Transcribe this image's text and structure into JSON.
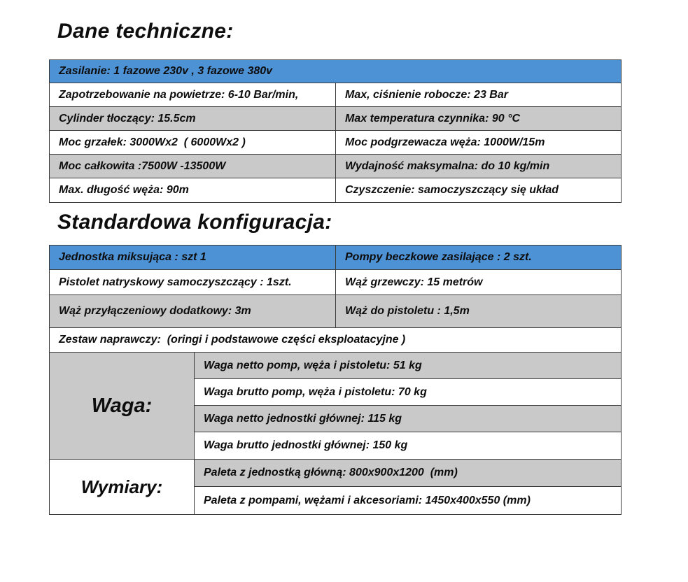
{
  "colors": {
    "header_blue": "#4e92d6",
    "row_gray": "#c9c9c9",
    "row_white": "#ffffff",
    "border": "#3b3b3b",
    "text": "#0d0d0d",
    "page_background": "#ffffff"
  },
  "section1": {
    "title": "Dane techniczne:",
    "table": {
      "header": "Zasilanie: 1 fazowe 230v , 3 fazowe 380v",
      "rows": [
        {
          "left": "Zapotrzebowanie na powietrze: 6-10 Bar/min,",
          "right": "Max, ciśnienie robocze: 23 Bar",
          "shade": "white"
        },
        {
          "left": "Cylinder tłoczący: 15.5cm",
          "right": "Max temperatura czynnika: 90 °C",
          "shade": "gray"
        },
        {
          "left": "Moc grzałek: 3000Wx2  ( 6000Wx2 )",
          "right": "Moc podgrzewacza węża: 1000W/15m",
          "shade": "white"
        },
        {
          "left": "Moc całkowita :7500W -13500W",
          "right": "Wydajność maksymalna: do 10 kg/min",
          "shade": "gray"
        },
        {
          "left": "Max. długość węża: 90m",
          "right": "Czyszczenie: samoczyszczący się układ",
          "shade": "white"
        }
      ]
    }
  },
  "section2": {
    "title": "Standardowa konfiguracja:",
    "table": {
      "header_left": "Jednostka miksująca : szt 1",
      "header_right": "Pompy beczkowe zasilające : 2 szt.",
      "rows": [
        {
          "left": "Pistolet natryskowy samoczyszczący : 1szt.",
          "right": "Wąż grzewczy: 15 metrów",
          "shade": "white"
        },
        {
          "left": "Wąż przyłączeniowy dodatkowy: 3m",
          "right": "Wąż do pistoletu : 1,5m",
          "shade": "gray"
        }
      ],
      "full_row": "Zestaw naprawczy:  (oringi i podstawowe części eksploatacyjne )",
      "waga": {
        "label": "Waga:",
        "rows": [
          {
            "text": "Waga netto pomp, węża i pistoletu: 51 kg",
            "shade": "gray"
          },
          {
            "text": "Waga brutto pomp, węża i pistoletu: 70 kg",
            "shade": "white"
          },
          {
            "text": "Waga netto jednostki głównej: 115 kg",
            "shade": "gray"
          },
          {
            "text": "Waga brutto jednostki głównej: 150 kg",
            "shade": "white"
          }
        ]
      },
      "wymiary": {
        "label": "Wymiary:",
        "rows": [
          {
            "text": "Paleta z jednostką główną: 800x900x1200  (mm)",
            "shade": "gray"
          },
          {
            "text": "Paleta z pompami, wężami i akcesoriami: 1450x400x550 (mm)",
            "shade": "white"
          }
        ]
      }
    }
  }
}
